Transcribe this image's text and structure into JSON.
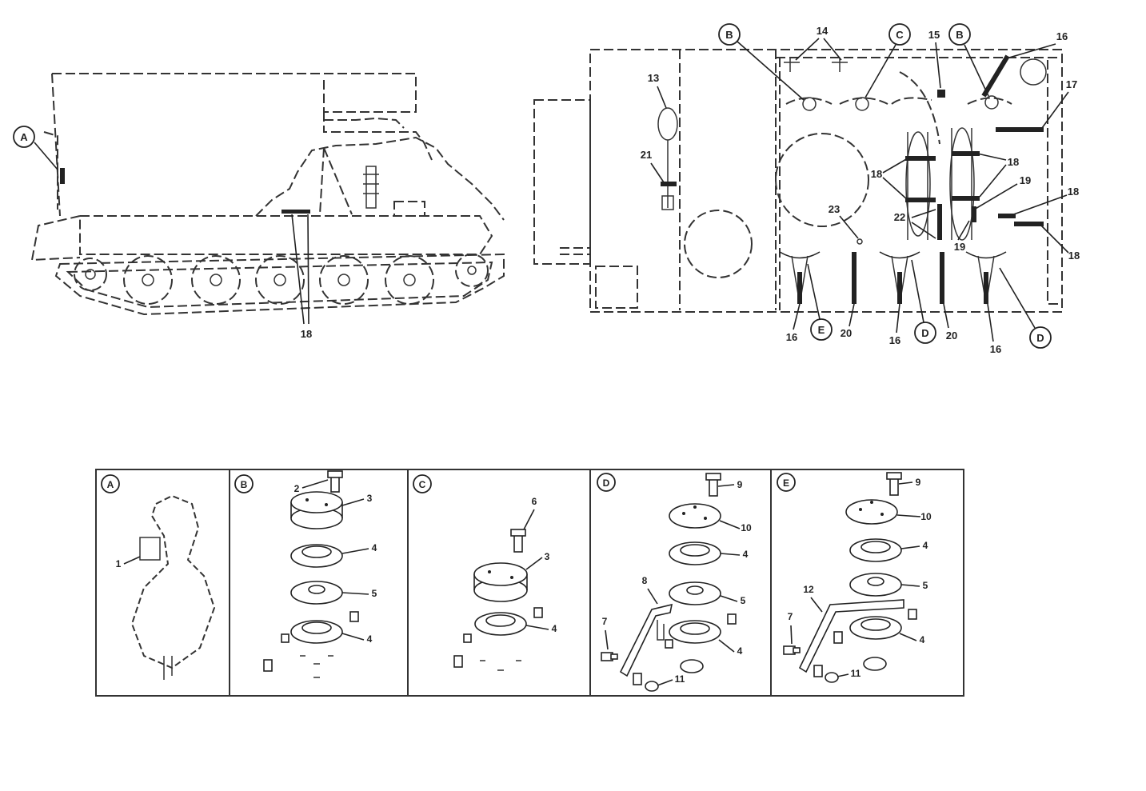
{
  "side_view": {
    "callouts": [
      "A",
      "18"
    ]
  },
  "top_view": {
    "callouts": [
      "B",
      "14",
      "C",
      "15",
      "B",
      "16",
      "13",
      "17",
      "21",
      "18",
      "18",
      "19",
      "18",
      "23",
      "22",
      "19",
      "18",
      "16",
      "E",
      "20",
      "16",
      "D",
      "20",
      "16",
      "D"
    ]
  },
  "details": [
    {
      "letter": "A",
      "parts": [
        "1"
      ]
    },
    {
      "letter": "B",
      "parts": [
        "2",
        "3",
        "4",
        "5",
        "4"
      ]
    },
    {
      "letter": "C",
      "parts": [
        "6",
        "3",
        "4"
      ]
    },
    {
      "letter": "D",
      "parts": [
        "9",
        "10",
        "4",
        "8",
        "5",
        "7",
        "4",
        "11"
      ]
    },
    {
      "letter": "E",
      "parts": [
        "9",
        "10",
        "4",
        "12",
        "5",
        "7",
        "4",
        "11"
      ]
    }
  ]
}
